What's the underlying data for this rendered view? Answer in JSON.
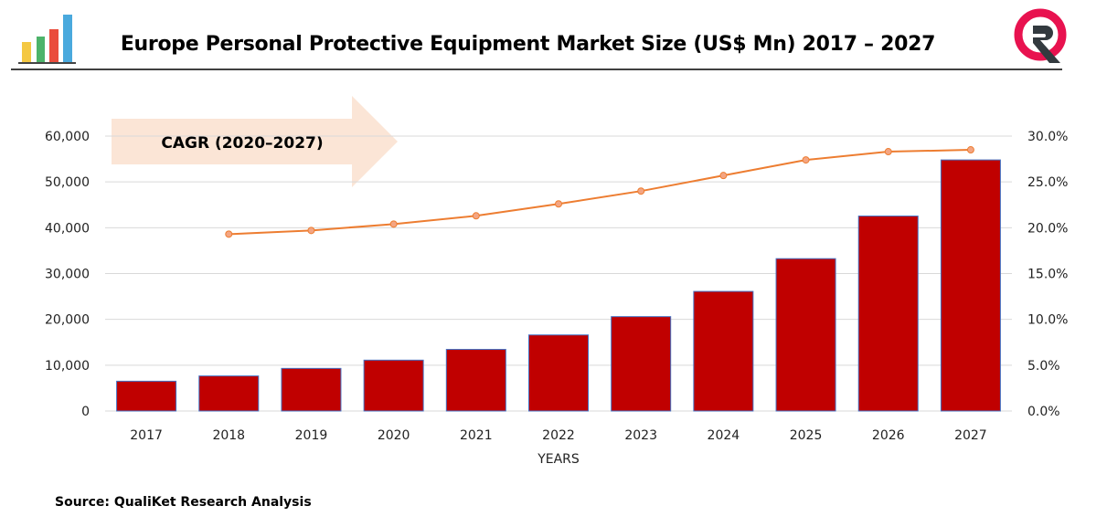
{
  "header": {
    "title": "Europe Personal Protective Equipment Market Size (US$ Mn) 2017 – 2027"
  },
  "logos": {
    "left": "bar-chart-icon",
    "right": "qualiket-logo"
  },
  "annotation": {
    "label": "CAGR (2020–2027)"
  },
  "source": "Source: QualiKet Research Analysis",
  "chart_data": {
    "type": "bar",
    "title": "Europe Personal Protective Equipment Market Size (US$ Mn) 2017 – 2027",
    "xlabel": "YEARS",
    "ylabel": "",
    "categories": [
      "2017",
      "2018",
      "2019",
      "2020",
      "2021",
      "2022",
      "2023",
      "2024",
      "2025",
      "2026",
      "2027"
    ],
    "ylim": [
      0,
      60000
    ],
    "yticks": [
      "0",
      "10,000",
      "20,000",
      "30,000",
      "40,000",
      "50,000",
      "60,000"
    ],
    "y2lim": [
      0,
      30
    ],
    "y2ticks": [
      "0.0%",
      "5.0%",
      "10.0%",
      "15.0%",
      "20.0%",
      "25.0%",
      "30.0%"
    ],
    "grid": true,
    "series": [
      {
        "type": "bar",
        "color": "#c00000",
        "values": [
          6500,
          7650,
          9300,
          11100,
          13450,
          16600,
          20600,
          26100,
          33250,
          42550,
          54800
        ]
      },
      {
        "type": "line",
        "axis": "right",
        "color": "#ed7d31",
        "values": [
          null,
          19.3,
          19.7,
          20.4,
          21.3,
          22.6,
          24.0,
          25.7,
          27.4,
          28.3,
          28.5
        ]
      }
    ]
  }
}
